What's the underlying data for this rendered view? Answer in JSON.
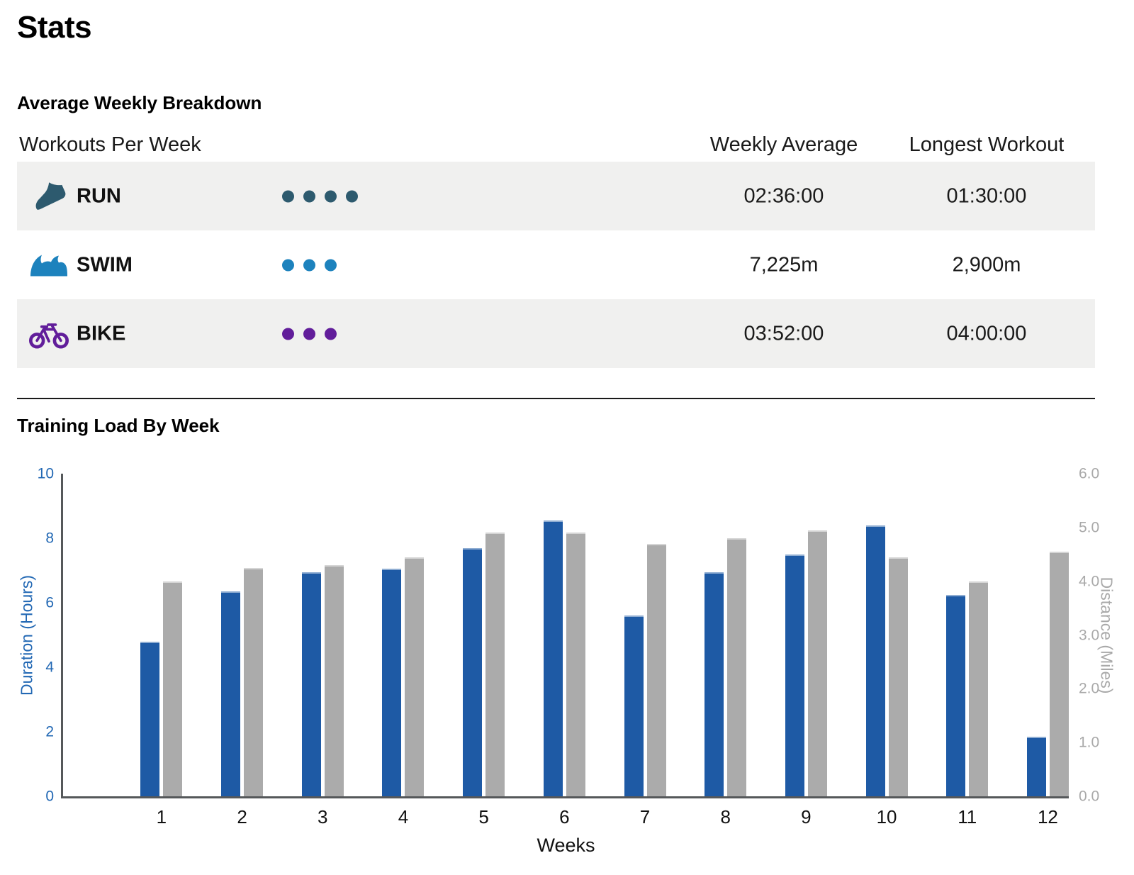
{
  "page": {
    "title": "Stats"
  },
  "breakdown": {
    "section_title": "Average Weekly Breakdown",
    "columns": {
      "workouts": "Workouts Per Week",
      "weekly_average": "Weekly Average",
      "longest_workout": "Longest Workout"
    },
    "rows": [
      {
        "sport": "RUN",
        "icon": "running-shoe-icon",
        "workouts_per_week": 4,
        "weekly_average": "02:36:00",
        "longest_workout": "01:30:00",
        "color": "#2d5a6e"
      },
      {
        "sport": "SWIM",
        "icon": "wave-icon",
        "workouts_per_week": 3,
        "weekly_average": "7,225m",
        "longest_workout": "2,900m",
        "color": "#1d82bd"
      },
      {
        "sport": "BIKE",
        "icon": "bicycle-icon",
        "workouts_per_week": 3,
        "weekly_average": "03:52:00",
        "longest_workout": "04:00:00",
        "color": "#611d9a"
      }
    ]
  },
  "chart_data": {
    "type": "bar",
    "title": "Training Load By Week",
    "categories": [
      "1",
      "2",
      "3",
      "4",
      "5",
      "6",
      "7",
      "8",
      "9",
      "10",
      "11",
      "12"
    ],
    "xlabel": "Weeks",
    "series": [
      {
        "name": "Duration (Hours)",
        "axis": "left",
        "color": "#1e5aa5",
        "values": [
          4.8,
          6.35,
          6.95,
          7.05,
          7.7,
          8.55,
          5.6,
          6.95,
          7.5,
          8.4,
          6.25,
          1.85
        ]
      },
      {
        "name": "Distance (Miles)",
        "axis": "right",
        "color": "#ababab",
        "values": [
          4.0,
          4.25,
          4.3,
          4.45,
          4.9,
          4.9,
          4.7,
          4.8,
          4.95,
          4.45,
          4.0,
          4.55
        ]
      }
    ],
    "left_axis": {
      "label": "Duration (Hours)",
      "ticks": [
        "0",
        "2",
        "4",
        "6",
        "8",
        "10"
      ],
      "min": 0,
      "max": 10,
      "color": "#2268b4"
    },
    "right_axis": {
      "label": "Distance (Miles)",
      "ticks": [
        "0.0",
        "1.0",
        "2.0",
        "3.0",
        "4.0",
        "5.0",
        "6.0"
      ],
      "min": 0,
      "max": 6,
      "color": "#a9a9a9"
    },
    "grid": false,
    "legend": "none"
  }
}
